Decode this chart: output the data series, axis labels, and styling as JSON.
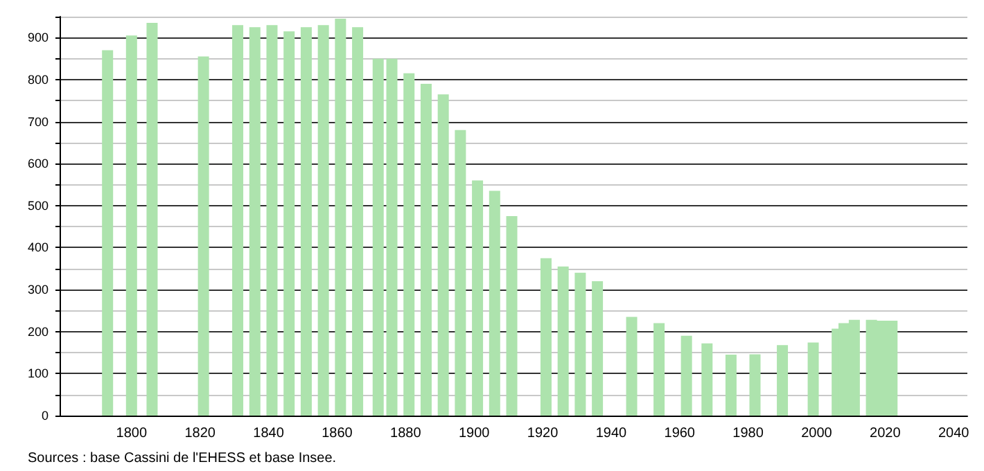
{
  "chart_data": {
    "type": "bar",
    "color": "#ade3ad",
    "x": [
      1793,
      1800,
      1806,
      1821,
      1831,
      1836,
      1841,
      1846,
      1851,
      1856,
      1861,
      1866,
      1872,
      1876,
      1881,
      1886,
      1891,
      1896,
      1901,
      1906,
      1911,
      1921,
      1926,
      1931,
      1936,
      1946,
      1954,
      1962,
      1968,
      1975,
      1982,
      1990,
      1999,
      2006,
      2008,
      2011,
      2016,
      2019,
      2022
    ],
    "values": [
      870,
      905,
      935,
      855,
      930,
      925,
      930,
      915,
      925,
      930,
      945,
      925,
      850,
      850,
      815,
      790,
      765,
      680,
      560,
      535,
      475,
      375,
      355,
      340,
      320,
      235,
      220,
      190,
      172,
      145,
      146,
      168,
      174,
      207,
      220,
      228,
      228,
      226,
      226
    ],
    "xlim": [
      1779,
      2044
    ],
    "xticks": [
      1800,
      1820,
      1840,
      1860,
      1880,
      1900,
      1920,
      1940,
      1960,
      1980,
      2000,
      2020,
      2040
    ],
    "ylim": [
      0,
      950
    ],
    "yticks": [
      0,
      {
        "value": 50,
        "label": null
      },
      100,
      {
        "value": 150,
        "label": null
      },
      200,
      {
        "value": 250,
        "label": null
      },
      300,
      {
        "value": 350,
        "label": null
      },
      400,
      {
        "value": 450,
        "label": null
      },
      500,
      {
        "value": 550,
        "label": null
      },
      600,
      {
        "value": 650,
        "label": null
      },
      700,
      {
        "value": 750,
        "label": null
      },
      800,
      {
        "value": 850,
        "label": null
      },
      900,
      {
        "value": 950,
        "label": null
      }
    ],
    "grid": "y",
    "annotations": [
      "Sources : base Cassini de l'EHESS et base Insee."
    ]
  }
}
